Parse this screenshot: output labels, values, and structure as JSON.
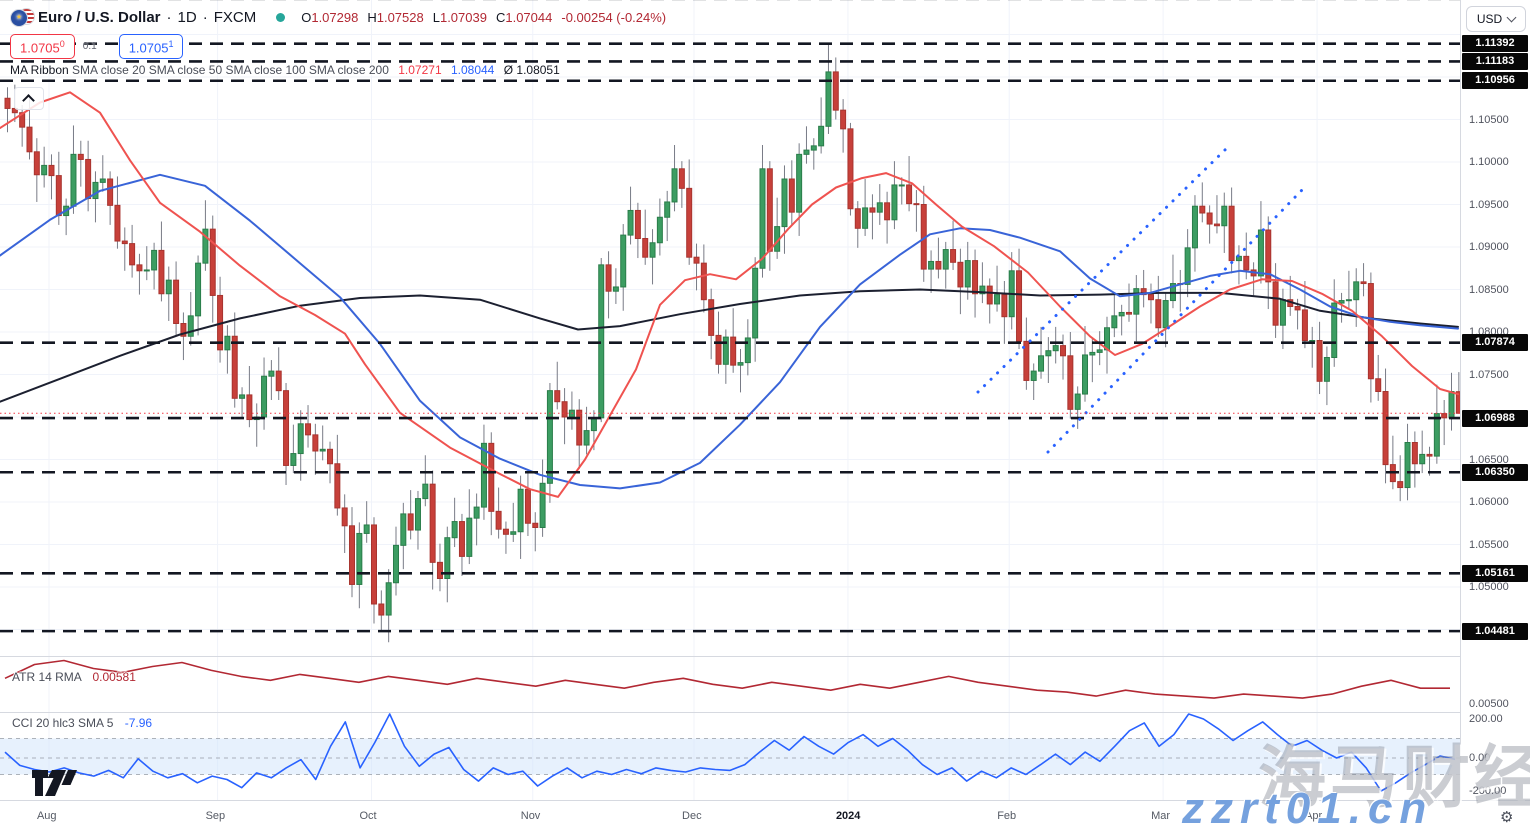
{
  "header": {
    "symbol_name": "Euro / U.S. Dollar",
    "separator": "·",
    "timeframe": "1D",
    "exchange": "FXCM",
    "flag_icon": "eu-us-flag-pair",
    "status_dot_color": "#26a69a",
    "o_label": "O",
    "o_value": "1.07298",
    "h_label": "H",
    "h_value": "1.07528",
    "l_label": "L",
    "l_value": "1.07039",
    "c_label": "C",
    "c_value": "1.07044",
    "change": "-0.00254 (-0.24%)"
  },
  "alert_chips": {
    "red_price": "1.0705",
    "red_sup": "0",
    "gap_label": "0.1",
    "blue_price": "1.0705",
    "blue_sup": "1"
  },
  "ma_legend": {
    "name": "MA Ribbon",
    "params": "SMA close 20 SMA close 50 SMA close 100 SMA close 200",
    "value_red": "1.07271",
    "value_blue": "1.08044",
    "avg_prefix": "Ø",
    "value_avg": "1.08051"
  },
  "atr_pane": {
    "label": "ATR 14 RMA",
    "value": "0.00581",
    "axis_tick": "0.00500",
    "line_color": "#b22833",
    "series": [
      0.0063,
      0.007,
      0.0072,
      0.0068,
      0.0066,
      0.0069,
      0.0071,
      0.0067,
      0.0064,
      0.0062,
      0.0065,
      0.0063,
      0.0061,
      0.0064,
      0.0062,
      0.006,
      0.0063,
      0.0061,
      0.0059,
      0.0062,
      0.006,
      0.0058,
      0.0061,
      0.0063,
      0.006,
      0.0058,
      0.0061,
      0.0059,
      0.0057,
      0.006,
      0.0058,
      0.0061,
      0.0064,
      0.0061,
      0.0059,
      0.0057,
      0.0056,
      0.0054,
      0.0057,
      0.0055,
      0.0054,
      0.0053,
      0.0055,
      0.0054,
      0.0053,
      0.0055,
      0.0059,
      0.0062,
      0.0058,
      0.0058
    ]
  },
  "cci_pane": {
    "label": "CCI 20 hlc3 SMA 5",
    "value": "-7.96",
    "axis_ticks": [
      "200.00",
      "0.00",
      "-200.00"
    ],
    "band_levels": [
      100,
      -100
    ],
    "line_color": "#2962ff",
    "series": [
      30,
      -45,
      -70,
      -85,
      -60,
      -90,
      -110,
      -75,
      -120,
      -5,
      -80,
      -120,
      -95,
      -150,
      -110,
      -130,
      -180,
      -90,
      -120,
      -60,
      -10,
      -130,
      60,
      185,
      -60,
      80,
      245,
      60,
      -50,
      20,
      54,
      -70,
      -140,
      -60,
      -100,
      -80,
      -170,
      -110,
      -60,
      -120,
      -80,
      -100,
      -70,
      -95,
      -60,
      -75,
      -85,
      -60,
      -70,
      -75,
      -40,
      30,
      90,
      40,
      110,
      60,
      20,
      80,
      120,
      60,
      100,
      40,
      -40,
      -100,
      -60,
      -140,
      -80,
      -120,
      -60,
      -100,
      -40,
      20,
      -40,
      30,
      -20,
      60,
      140,
      180,
      60,
      120,
      290,
      200,
      150,
      90,
      140,
      185,
      120,
      60,
      90,
      40,
      0,
      30,
      -60,
      -200,
      -150,
      -90,
      -40,
      10,
      -8
    ]
  },
  "price_scale": {
    "currency": "USD",
    "ticks": [
      1.105,
      1.1,
      1.095,
      1.09,
      1.085,
      1.08,
      1.075,
      1.065,
      1.06,
      1.055,
      1.05
    ],
    "level_boxes": [
      {
        "label": "1.11392",
        "price": 1.11392
      },
      {
        "label": "1.11183",
        "price": 1.11183
      },
      {
        "label": "1.10956",
        "price": 1.10956
      },
      {
        "label": "1.07874",
        "price": 1.07874
      },
      {
        "label": "1.06988",
        "price": 1.06988
      },
      {
        "label": "1.06350",
        "price": 1.0635
      },
      {
        "label": "1.05161",
        "price": 1.05161
      },
      {
        "label": "1.04481",
        "price": 1.04481
      }
    ]
  },
  "chart_data": {
    "type": "candlestick",
    "title": "Euro / U.S. Dollar · 1D · FXCM",
    "up_color": "#3c9d62",
    "down_color": "#c7403a",
    "wick_color": "#787b86",
    "grid_prices": [
      1.115,
      1.11,
      1.105,
      1.1,
      1.095,
      1.09,
      1.085,
      1.08,
      1.075,
      1.07,
      1.065,
      1.06,
      1.055,
      1.05,
      1.045
    ],
    "months": [
      [
        "Aug",
        6
      ],
      [
        "Sep",
        29
      ],
      [
        "Oct",
        50
      ],
      [
        "Nov",
        72
      ],
      [
        "Dec",
        94
      ],
      [
        "2024",
        115
      ],
      [
        "Feb",
        137
      ],
      [
        "Mar",
        158
      ],
      [
        "Apr",
        179
      ]
    ],
    "first_open": 1.1075,
    "closes": [
      1.1063,
      1.1058,
      1.1041,
      1.1012,
      1.0985,
      1.0996,
      1.0984,
      1.0937,
      1.0948,
      1.1009,
      1.1003,
      1.0957,
      1.0976,
      1.098,
      1.0949,
      1.0907,
      1.0904,
      1.0879,
      1.0872,
      1.0873,
      1.0896,
      1.0845,
      1.0861,
      1.081,
      1.0795,
      1.0819,
      1.0881,
      1.0921,
      1.0843,
      1.0779,
      1.0795,
      1.0722,
      1.0726,
      1.0697,
      1.07,
      1.0748,
      1.0754,
      1.0731,
      1.0643,
      1.0657,
      1.0692,
      1.0679,
      1.066,
      1.0662,
      1.0645,
      1.0593,
      1.0572,
      1.0503,
      1.0563,
      1.0573,
      1.048,
      1.0467,
      1.0505,
      1.0549,
      1.0586,
      1.0567,
      1.0604,
      1.0621,
      1.0529,
      1.051,
      1.0558,
      1.0577,
      1.0536,
      1.0581,
      1.0594,
      1.0669,
      1.0589,
      1.0568,
      1.0562,
      1.0565,
      1.0615,
      1.0575,
      1.057,
      1.0622,
      1.0731,
      1.0718,
      1.07,
      1.0708,
      1.0667,
      1.0684,
      1.0699,
      1.0879,
      1.0848,
      1.0853,
      1.0914,
      1.0943,
      1.091,
      1.0888,
      1.0905,
      1.0935,
      1.0953,
      1.0992,
      1.0969,
      1.0888,
      1.0881,
      1.0838,
      1.0796,
      1.0762,
      1.0794,
      1.0761,
      1.0764,
      1.0793,
      1.0875,
      1.0992,
      1.0895,
      1.0924,
      1.098,
      1.0941,
      1.1009,
      1.1014,
      1.1019,
      1.1042,
      1.1106,
      1.1061,
      1.1039,
      1.0945,
      1.0922,
      1.0946,
      1.0941,
      1.0952,
      1.0932,
      1.0973,
      1.0973,
      1.0951,
      1.095,
      1.0874,
      1.0883,
      1.0874,
      1.0897,
      1.0882,
      1.0853,
      1.0884,
      1.0845,
      1.0854,
      1.0833,
      1.0844,
      1.0818,
      1.0872,
      1.0789,
      1.0743,
      1.0754,
      1.0772,
      1.0778,
      1.0784,
      1.0772,
      1.0709,
      1.0727,
      1.0773,
      1.0776,
      1.0779,
      1.0805,
      1.0819,
      1.0823,
      1.0821,
      1.0851,
      1.0844,
      1.0838,
      1.0805,
      1.0837,
      1.0857,
      1.0856,
      1.0899,
      1.0948,
      1.094,
      1.0927,
      1.0925,
      1.0948,
      1.0884,
      1.0889,
      1.0873,
      1.0866,
      1.092,
      1.0859,
      1.0808,
      1.0838,
      1.083,
      1.0826,
      1.079,
      1.079,
      1.0742,
      1.077,
      1.0834,
      1.0837,
      1.0838,
      1.0859,
      1.0857,
      1.0745,
      1.073,
      1.0644,
      1.0624,
      1.0617,
      1.067,
      1.0645,
      1.0656,
      1.0654,
      1.0704,
      1.0699,
      1.073,
      1.07044
    ],
    "wick_high_pattern": [
      0.0013,
      0.0028,
      0.0009,
      0.0034,
      0.0016,
      0.0022
    ],
    "wick_low_pattern": [
      0.0028,
      0.0011,
      0.0023,
      0.0009,
      0.0032,
      0.0015
    ],
    "ohlc_overrides": {
      "51": [
        1.048,
        1.0496,
        1.0448,
        1.0467
      ],
      "81": [
        1.0699,
        1.0887,
        1.0694,
        1.0879
      ],
      "112": [
        1.1042,
        1.1139,
        1.1033,
        1.1106
      ],
      "113": [
        1.1106,
        1.1123,
        1.105,
        1.1061
      ],
      "115": [
        1.1039,
        1.1046,
        1.0937,
        1.0945
      ],
      "138": [
        1.0872,
        1.0898,
        1.078,
        1.0789
      ],
      "188": [
        1.073,
        1.0757,
        1.0622,
        1.0644
      ],
      "190": [
        1.0624,
        1.0655,
        1.0601,
        1.0617
      ],
      "198": [
        1.07298,
        1.07528,
        1.07039,
        1.07044
      ]
    },
    "current_price": 1.07044,
    "current_price_line_color": "#f23645",
    "levels_labeled": [
      1.11392,
      1.11183,
      1.10956,
      1.07874,
      1.06988,
      1.0635,
      1.05161,
      1.04481
    ],
    "levels_unlabeled": [
      1.1192
    ],
    "level_line_color": "#131722",
    "ma_lines": {
      "red": {
        "color": "#ef5350",
        "anchors": [
          [
            0,
            1.104
          ],
          [
            40,
            1.107
          ],
          [
            70,
            1.1082
          ],
          [
            100,
            1.1058
          ],
          [
            130,
            1.1002
          ],
          [
            160,
            1.0952
          ],
          [
            200,
            1.0918
          ],
          [
            240,
            1.0878
          ],
          [
            280,
            1.0842
          ],
          [
            315,
            1.082
          ],
          [
            345,
            1.0798
          ],
          [
            365,
            1.0762
          ],
          [
            400,
            1.0705
          ],
          [
            450,
            1.0664
          ],
          [
            500,
            1.0633
          ],
          [
            530,
            1.0615
          ],
          [
            558,
            1.0606
          ],
          [
            585,
            1.065
          ],
          [
            612,
            1.0706
          ],
          [
            636,
            1.0756
          ],
          [
            660,
            1.0832
          ],
          [
            685,
            1.0861
          ],
          [
            710,
            1.0868
          ],
          [
            736,
            1.0862
          ],
          [
            762,
            1.0886
          ],
          [
            788,
            1.0921
          ],
          [
            812,
            1.095
          ],
          [
            836,
            1.097
          ],
          [
            862,
            1.0981
          ],
          [
            886,
            1.0987
          ],
          [
            912,
            1.0975
          ],
          [
            936,
            1.095
          ],
          [
            962,
            1.0924
          ],
          [
            994,
            1.0901
          ],
          [
            1028,
            1.087
          ],
          [
            1060,
            1.083
          ],
          [
            1090,
            1.0795
          ],
          [
            1115,
            1.0773
          ],
          [
            1142,
            1.0786
          ],
          [
            1170,
            1.0807
          ],
          [
            1200,
            1.083
          ],
          [
            1230,
            1.085
          ],
          [
            1262,
            1.0862
          ],
          [
            1292,
            1.086
          ],
          [
            1322,
            1.0845
          ],
          [
            1352,
            1.0825
          ],
          [
            1382,
            1.0795
          ],
          [
            1412,
            1.076
          ],
          [
            1440,
            1.0733
          ],
          [
            1458,
            1.0727
          ]
        ]
      },
      "blue": {
        "color": "#3964d8",
        "anchors": [
          [
            0,
            1.089
          ],
          [
            50,
            1.0932
          ],
          [
            100,
            1.0966
          ],
          [
            160,
            1.0985
          ],
          [
            205,
            1.0972
          ],
          [
            250,
            1.0931
          ],
          [
            300,
            1.0881
          ],
          [
            340,
            1.0841
          ],
          [
            380,
            1.0786
          ],
          [
            420,
            1.0719
          ],
          [
            460,
            1.0676
          ],
          [
            500,
            1.0651
          ],
          [
            540,
            1.0632
          ],
          [
            580,
            1.062
          ],
          [
            620,
            1.0616
          ],
          [
            660,
            1.0623
          ],
          [
            700,
            1.0646
          ],
          [
            740,
            1.0691
          ],
          [
            780,
            1.0741
          ],
          [
            820,
            1.0806
          ],
          [
            860,
            1.0856
          ],
          [
            900,
            1.0891
          ],
          [
            930,
            1.0915
          ],
          [
            960,
            1.0922
          ],
          [
            990,
            1.092
          ],
          [
            1020,
            1.0911
          ],
          [
            1060,
            1.0895
          ],
          [
            1090,
            1.0863
          ],
          [
            1120,
            1.0842
          ],
          [
            1150,
            1.0846
          ],
          [
            1180,
            1.0856
          ],
          [
            1210,
            1.0866
          ],
          [
            1240,
            1.0872
          ],
          [
            1270,
            1.0868
          ],
          [
            1300,
            1.085
          ],
          [
            1330,
            1.083
          ],
          [
            1360,
            1.0818
          ],
          [
            1390,
            1.0812
          ],
          [
            1420,
            1.0808
          ],
          [
            1458,
            1.0804
          ]
        ]
      },
      "black": {
        "color": "#1c2030",
        "anchors": [
          [
            0,
            1.0718
          ],
          [
            60,
            1.0745
          ],
          [
            120,
            1.0772
          ],
          [
            180,
            1.0797
          ],
          [
            240,
            1.0816
          ],
          [
            300,
            1.0831
          ],
          [
            360,
            1.084
          ],
          [
            420,
            1.0843
          ],
          [
            480,
            1.0838
          ],
          [
            540,
            1.0816
          ],
          [
            578,
            1.0803
          ],
          [
            620,
            1.0807
          ],
          [
            680,
            1.0821
          ],
          [
            740,
            1.0833
          ],
          [
            800,
            1.0843
          ],
          [
            860,
            1.0848
          ],
          [
            920,
            1.085
          ],
          [
            980,
            1.0847
          ],
          [
            1040,
            1.0843
          ],
          [
            1100,
            1.0844
          ],
          [
            1160,
            1.0846
          ],
          [
            1220,
            1.0846
          ],
          [
            1280,
            1.0839
          ],
          [
            1320,
            1.0825
          ],
          [
            1370,
            1.0816
          ],
          [
            1420,
            1.081
          ],
          [
            1458,
            1.0806
          ]
        ]
      }
    },
    "trendlines": {
      "color": "#2962ff",
      "segments": [
        [
          978,
          392,
          1228,
          147
        ],
        [
          1048,
          452,
          1302,
          190
        ]
      ]
    }
  },
  "time_axis": {
    "year_label": "2024"
  },
  "watermarks": {
    "chinese": "海马财经",
    "site": "zzrt01.cn"
  },
  "misc": {
    "gear_icon": "⚙",
    "eu_star": "★"
  }
}
